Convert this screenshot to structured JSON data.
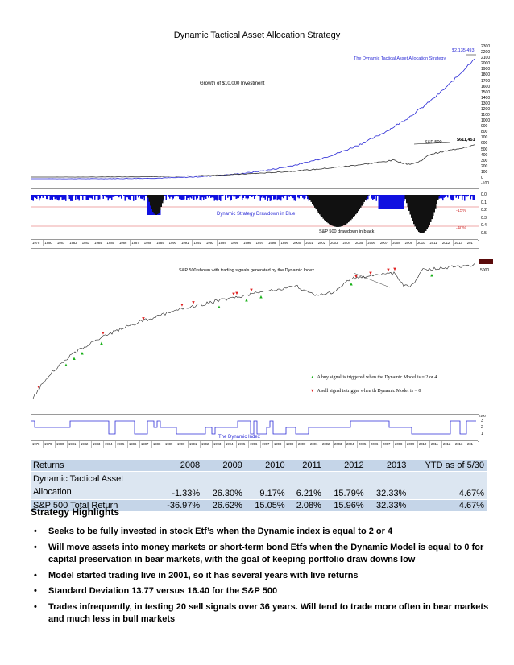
{
  "doc_title": "Dynamic Tactical Asset Allocation Strategy",
  "chart_top": {
    "growth_label": "Growth of $10,000 Investment",
    "strategy_label": "The Dynamic Tactical Asset Allocation Strategy",
    "strategy_value": "$2,135,493",
    "sp_label": "S&P 500",
    "sp_value": "$611,451",
    "yaxis_ticks": [
      "2300",
      "2200",
      "2100",
      "2000",
      "1900",
      "1800",
      "1700",
      "1600",
      "1500",
      "1400",
      "1300",
      "1200",
      "1100",
      "1000",
      "900",
      "800",
      "700",
      "600",
      "500",
      "400",
      "300",
      "200",
      "100",
      "0",
      "-100"
    ],
    "y_unit": "x1000",
    "series_strategy_color": "#2b2bd6",
    "series_sp_color": "#222222"
  },
  "chart_drawdown": {
    "strategy_label": "Dynamic Strategy Drawdown in Blue",
    "sp_label": "S&P 500 drawdown in black",
    "level_15": "-15%",
    "level_40": "-40%",
    "yaxis_ticks": [
      "0.0",
      "0.1",
      "0.2",
      "0.3",
      "0.4",
      "0.5"
    ],
    "y_unit": "x1000"
  },
  "years_a": [
    "1978",
    "1980",
    "1981",
    "1982",
    "1983",
    "1984",
    "1985",
    "1986",
    "1987",
    "1988",
    "1989",
    "1990",
    "1991",
    "1992",
    "1993",
    "1994",
    "1995",
    "1996",
    "1997",
    "1998",
    "1999",
    "2000",
    "2001",
    "2002",
    "2003",
    "2004",
    "2005",
    "2006",
    "2007",
    "2008",
    "2009",
    "2010",
    "2011",
    "2012",
    "2013",
    "201"
  ],
  "chart_signals": {
    "title": "S&P 500 shown with trading signals generated by the Dynamic Index",
    "value_label": "5000",
    "buy_text": "A buy signal is triggered when the Dynamic Model is = 2 or 4",
    "sell_text": "A sell signal is trigger when th Dynamic Model is = 0"
  },
  "chart_index": {
    "label": "The Dynamic Index",
    "yaxis_ticks": [
      "3",
      "2",
      "1"
    ],
    "y_unit": "x100"
  },
  "years_b": [
    "1978",
    "1979",
    "1980",
    "1981",
    "1982",
    "1983",
    "1984",
    "1985",
    "1986",
    "1987",
    "1988",
    "1989",
    "1990",
    "1991",
    "1992",
    "1993",
    "1994",
    "1995",
    "1996",
    "1997",
    "1998",
    "1999",
    "2000",
    "2001",
    "2002",
    "2003",
    "2004",
    "2005",
    "2006",
    "2007",
    "2008",
    "2009",
    "2010",
    "2011",
    "2012",
    "2013",
    "201"
  ],
  "returns_table": {
    "headers": [
      "Returns",
      "2008",
      "2009",
      "2010",
      "2011",
      "2012",
      "2013",
      "YTD as of 5/30"
    ],
    "row1_label_a": "Dynamic Tactical Asset",
    "row1_label_b": "Allocation",
    "row1": [
      "-1.33%",
      "26.30%",
      "9.17%",
      "6.21%",
      "15.79%",
      "32.33%",
      "4.67%"
    ],
    "row2": [
      "S&P 500 Total Return",
      "-36.97%",
      "26.62%",
      "15.05%",
      "2.08%",
      "15.96%",
      "32.33%",
      "4.67%"
    ]
  },
  "highlights": {
    "title": "Strategy Highlights",
    "items": [
      "Seeks to be fully invested in stock Etf’s when the Dynamic index is equal to 2 or 4",
      "Will move assets into money markets or short-term bond Etfs when the Dynamic Model is equal to 0 for capital preservation in bear markets, with the goal of keeping portfolio draw downs low",
      "Model started trading live in 2001, so it has several years with live returns",
      "Standard Deviation 13.77 versus 16.40 for the S&P 500",
      "Trades infrequently, in testing 20 sell signals over 36 years. Will tend to trade more often in bear markets and much less in bull markets"
    ]
  }
}
